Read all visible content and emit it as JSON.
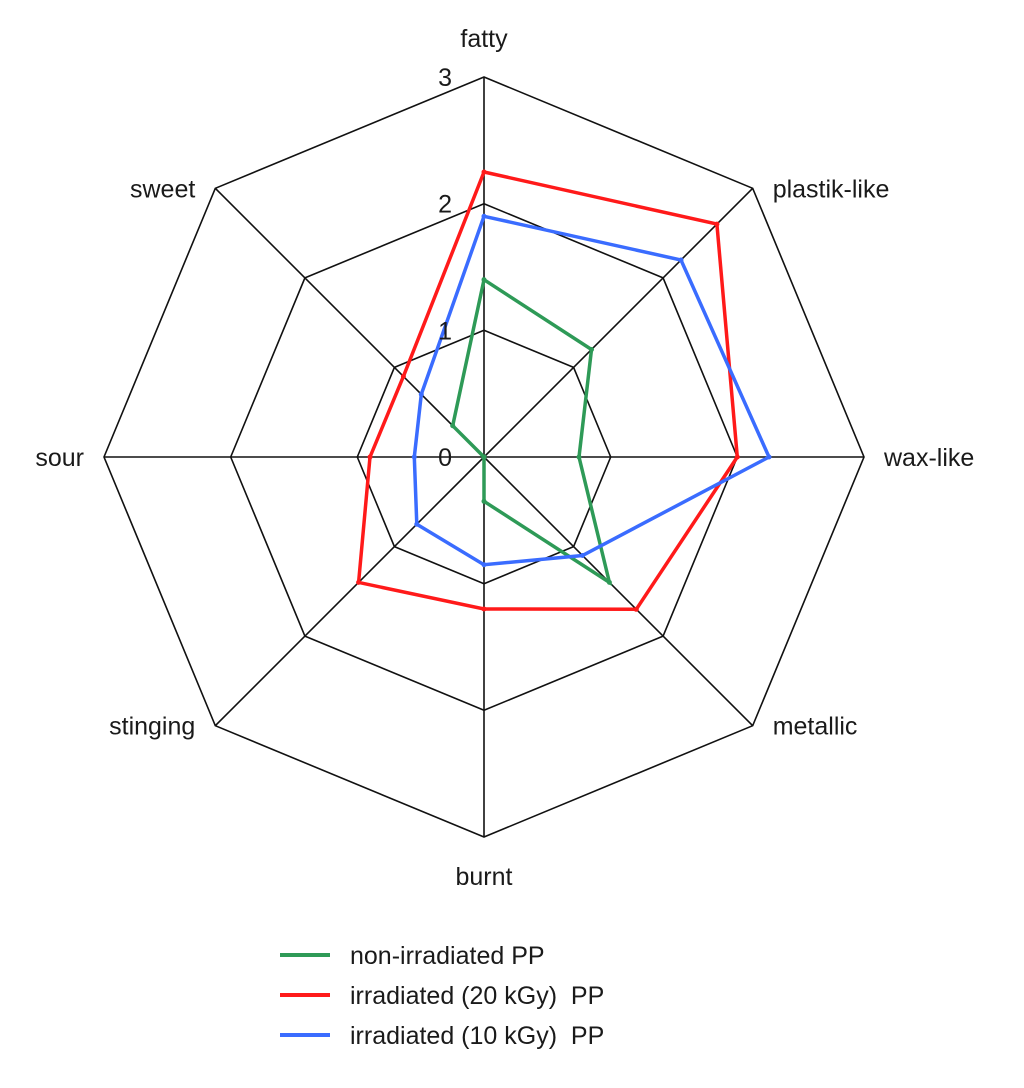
{
  "chart_data": {
    "type": "radar",
    "axes": [
      "fatty",
      "plastik-like",
      "wax-like",
      "metallic",
      "burnt",
      "stinging",
      "sour",
      "sweet"
    ],
    "rlim": [
      0,
      3
    ],
    "ticks": [
      "0",
      "1",
      "2",
      "3"
    ],
    "grid": true,
    "legend_position": "bottom",
    "series": [
      {
        "name": "non-irradiated PP",
        "color": "#2e9a57",
        "values": [
          1.4,
          1.2,
          0.75,
          1.4,
          0.35,
          0.0,
          0.0,
          0.35
        ]
      },
      {
        "name": "irradiated (20 kGy)  PP",
        "color": "#ff1a1a",
        "values": [
          2.25,
          2.6,
          2.0,
          1.7,
          1.2,
          1.4,
          0.9,
          0.9
        ]
      },
      {
        "name": "irradiated (10 kGy)  PP",
        "color": "#3a6cff",
        "values": [
          1.9,
          2.2,
          2.25,
          1.1,
          0.85,
          0.75,
          0.55,
          0.7
        ]
      }
    ]
  }
}
